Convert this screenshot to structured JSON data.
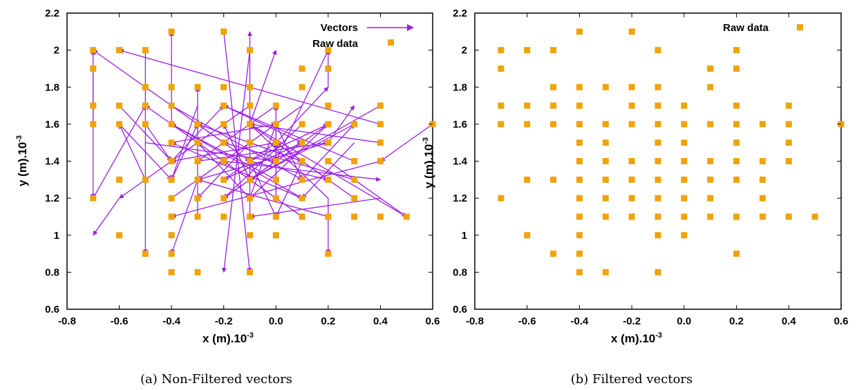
{
  "colors": {
    "points": "#f0a30a",
    "vectors": "#9b1de6",
    "axes": "#000000"
  },
  "chart_data": [
    {
      "type": "scatter",
      "panel": "a",
      "caption": "(a) Non-Filtered vectors",
      "xlabel": "x (m).10",
      "ylabel": "y (m).10",
      "exponent": "-3",
      "xlim": [
        -0.8,
        0.6
      ],
      "ylim": [
        0.6,
        2.2
      ],
      "xticks": [
        "-0.8",
        "-0.6",
        "-0.4",
        "-0.2",
        "0.0",
        "0.2",
        "0.4",
        "0.6"
      ],
      "yticks": [
        "0.6",
        "0.8",
        "1",
        "1.2",
        "1.4",
        "1.6",
        "1.8",
        "2",
        "2.2"
      ],
      "grid": false,
      "legend_position": "top-right",
      "legend": [
        {
          "label": "Vectors",
          "kind": "arrow"
        },
        {
          "label": "Raw data",
          "kind": "square"
        }
      ],
      "series": [
        {
          "name": "Raw data",
          "x": [
            -0.7,
            -0.6,
            -0.5,
            -0.2,
            -0.1,
            0.2,
            -0.4,
            0.2,
            -0.7,
            0.1,
            -0.1,
            -0.5,
            -0.4,
            -0.3,
            -0.2,
            0.1,
            -0.7,
            -0.6,
            -0.5,
            -0.4,
            -0.2,
            -0.1,
            0.0,
            0.2,
            0.4,
            -0.7,
            -0.6,
            -0.5,
            -0.4,
            -0.3,
            -0.2,
            -0.1,
            0.0,
            0.1,
            0.2,
            0.3,
            0.4,
            -0.4,
            -0.3,
            -0.2,
            -0.1,
            0.0,
            0.1,
            0.2,
            0.4,
            -0.4,
            -0.3,
            -0.2,
            -0.1,
            0.0,
            0.1,
            0.2,
            0.3,
            0.4,
            -0.6,
            -0.5,
            -0.4,
            -0.3,
            -0.2,
            -0.1,
            0.0,
            0.1,
            0.2,
            0.3,
            -0.7,
            -0.4,
            -0.3,
            -0.2,
            -0.1,
            0.0,
            0.1,
            0.3,
            -0.4,
            -0.3,
            -0.2,
            -0.1,
            0.0,
            0.1,
            0.2,
            0.3,
            0.4,
            0.5,
            -0.6,
            -0.4,
            -0.1,
            0.0,
            -0.5,
            -0.4,
            0.2,
            -0.4,
            -0.3,
            -0.1,
            -0.4,
            -0.2,
            -0.1,
            -0.1,
            -0.2,
            0.0,
            0.0,
            0.2,
            0.6
          ],
          "y": [
            2.0,
            2.0,
            2.0,
            2.1,
            2.0,
            2.0,
            2.1,
            1.9,
            1.9,
            1.9,
            1.8,
            1.8,
            1.8,
            1.8,
            1.8,
            1.8,
            1.7,
            1.7,
            1.7,
            1.7,
            1.7,
            1.7,
            1.7,
            1.7,
            1.7,
            1.6,
            1.6,
            1.6,
            1.6,
            1.6,
            1.6,
            1.6,
            1.6,
            1.6,
            1.6,
            1.6,
            1.6,
            1.5,
            1.5,
            1.5,
            1.5,
            1.5,
            1.5,
            1.5,
            1.5,
            1.4,
            1.4,
            1.4,
            1.4,
            1.4,
            1.4,
            1.4,
            1.4,
            1.4,
            1.3,
            1.3,
            1.3,
            1.3,
            1.3,
            1.3,
            1.3,
            1.3,
            1.3,
            1.3,
            1.2,
            1.2,
            1.2,
            1.2,
            1.2,
            1.2,
            1.2,
            1.2,
            1.1,
            1.1,
            1.1,
            1.1,
            1.1,
            1.1,
            1.1,
            1.1,
            1.1,
            1.1,
            1.0,
            1.0,
            1.0,
            1.0,
            0.9,
            0.9,
            0.9,
            0.8,
            0.8,
            0.8,
            1.4,
            1.4,
            1.5,
            1.6,
            1.5,
            1.5,
            1.4,
            1.5,
            1.6
          ]
        },
        {
          "name": "Vectors",
          "x0": [
            -0.7,
            -0.7,
            -0.5,
            -0.2,
            -0.1,
            0.2,
            -0.4,
            -0.6,
            0.4,
            0.6,
            -0.7,
            -0.1,
            0.5,
            0.2,
            -0.4,
            0.2,
            0.4,
            -0.1,
            -0.3,
            0.1,
            -0.5,
            0.0,
            0.3,
            -0.2,
            0.1,
            -0.6,
            0.2,
            -0.3,
            -0.1,
            0.0,
            -0.4,
            0.3,
            -0.2,
            0.4,
            0.0,
            -0.1,
            0.2,
            -0.5,
            0.1,
            -0.3,
            -0.4,
            0.0,
            -0.2,
            0.1,
            0.3,
            -0.1,
            0.0,
            -0.2,
            0.2,
            -0.4,
            -0.1,
            0.0,
            0.1,
            -0.3,
            0.2,
            -0.2,
            0.0,
            -0.1,
            0.3,
            0.4,
            -0.6,
            0.2,
            -0.2,
            0.1,
            -0.4,
            0.0,
            0.3,
            -0.3,
            -0.1,
            0.2,
            -0.2,
            0.0,
            -0.5,
            0.4,
            0.1,
            -0.3,
            0.0,
            -0.1,
            0.2,
            -0.2,
            0.1,
            -0.4,
            0.0,
            -0.1
          ],
          "y0": [
            1.6,
            1.9,
            2.0,
            2.1,
            2.0,
            2.0,
            1.6,
            1.2,
            1.6,
            1.6,
            1.2,
            1.1,
            1.1,
            1.2,
            1.3,
            1.8,
            1.4,
            1.7,
            1.1,
            1.1,
            1.3,
            1.2,
            1.2,
            1.5,
            1.6,
            1.7,
            1.4,
            1.3,
            1.6,
            1.5,
            1.7,
            1.3,
            1.4,
            1.2,
            1.3,
            1.4,
            1.5,
            1.6,
            1.4,
            1.5,
            1.5,
            1.1,
            1.3,
            1.7,
            1.4,
            1.5,
            1.6,
            1.2,
            1.5,
            1.4,
            1.3,
            1.4,
            1.5,
            1.6,
            1.6,
            1.7,
            1.5,
            1.3,
            1.5,
            1.5,
            1.6,
            1.3,
            1.6,
            1.2,
            1.2,
            1.7,
            1.6,
            1.4,
            1.2,
            1.1,
            1.3,
            1.4,
            1.5,
            1.7,
            1.3,
            1.7,
            1.2,
            1.5,
            1.2,
            1.4,
            1.4,
            1.6,
            1.3,
            1.4
          ],
          "x1": [
            -0.7,
            -0.7,
            -0.5,
            -0.1,
            -0.2,
            0.0,
            -0.4,
            -0.7,
            -0.6,
            0.4,
            -0.5,
            -0.1,
            -0.1,
            0.2,
            -0.3,
            0.2,
            -0.4,
            -0.6,
            -0.3,
            -0.2,
            -0.6,
            0.0,
            0.0,
            -0.7,
            -0.2,
            -0.4,
            0.5,
            -0.4,
            0.0,
            0.2,
            0.1,
            -0.2,
            -0.5,
            -0.1,
            -0.4,
            0.2,
            0.3,
            -0.4,
            0.0,
            -0.1,
            0.0,
            -0.1,
            0.0,
            -0.3,
            -0.2,
            -0.3,
            0.1,
            0.1,
            -0.3,
            -0.2,
            0.2,
            0.0,
            -0.2,
            -0.1,
            -0.1,
            0.1,
            -0.4,
            -0.2,
            0.1,
            -0.1,
            -0.4,
            -0.1,
            -0.1,
            -0.4,
            -0.2,
            -0.3,
            -0.1,
            0.2,
            0.0,
            -0.3,
            0.1,
            -0.2,
            0.0,
            -0.1,
            0.3,
            -0.4,
            -0.3,
            0.1,
            -0.1,
            0.4,
            -0.3,
            0.1,
            0.0,
            0.2
          ],
          "y1": [
            2.0,
            1.2,
            0.9,
            0.8,
            0.8,
            1.4,
            2.1,
            1.0,
            2.0,
            1.4,
            1.7,
            2.1,
            1.6,
            0.9,
            1.6,
            2.0,
            1.1,
            1.2,
            1.8,
            1.4,
            1.6,
            1.6,
            1.5,
            2.0,
            1.2,
            1.4,
            1.1,
            0.9,
            2.0,
            1.8,
            1.3,
            1.5,
            1.7,
            1.1,
            1.6,
            1.3,
            1.7,
            1.4,
            1.1,
            1.2,
            1.6,
            1.4,
            1.5,
            1.3,
            1.7,
            1.2,
            1.3,
            1.5,
            1.3,
            1.7,
            1.6,
            1.7,
            1.3,
            1.4,
            1.2,
            1.5,
            1.4,
            1.6,
            1.2,
            1.6,
            1.3,
            1.6,
            1.3,
            1.5,
            1.4,
            1.4,
            1.3,
            1.5,
            1.6,
            1.3,
            1.5,
            1.2,
            1.4,
            1.3,
            1.6,
            1.3,
            1.5,
            1.4,
            1.6,
            1.3,
            1.6,
            1.2,
            1.5,
            1.6
          ]
        }
      ]
    },
    {
      "type": "scatter",
      "panel": "b",
      "caption": "(b) Filtered vectors",
      "xlabel": "x (m).10",
      "ylabel": "y (m).10",
      "exponent": "-3",
      "xlim": [
        -0.8,
        0.6
      ],
      "ylim": [
        0.6,
        2.2
      ],
      "xticks": [
        "-0.8",
        "-0.6",
        "-0.4",
        "-0.2",
        "0.0",
        "0.2",
        "0.4",
        "0.6"
      ],
      "yticks": [
        "0.6",
        "0.8",
        "1",
        "1.2",
        "1.4",
        "1.6",
        "1.8",
        "2",
        "2.2"
      ],
      "grid": false,
      "legend_position": "top-right",
      "legend": [
        {
          "label": "Raw data",
          "kind": "square"
        }
      ],
      "series": [
        {
          "name": "Raw data",
          "x": [
            -0.7,
            -0.6,
            -0.5,
            -0.1,
            0.2,
            -0.4,
            -0.2,
            -0.7,
            0.1,
            0.2,
            -0.5,
            -0.4,
            -0.3,
            -0.2,
            -0.1,
            0.1,
            -0.7,
            -0.6,
            -0.5,
            -0.4,
            -0.2,
            -0.1,
            0.0,
            0.2,
            0.4,
            -0.7,
            -0.6,
            -0.5,
            -0.4,
            -0.3,
            -0.2,
            -0.1,
            0.0,
            0.1,
            0.2,
            0.3,
            0.4,
            0.6,
            -0.4,
            -0.3,
            -0.1,
            0.0,
            0.2,
            0.4,
            -0.4,
            -0.3,
            -0.2,
            -0.1,
            0.0,
            0.1,
            0.2,
            0.3,
            0.4,
            -0.6,
            -0.5,
            -0.4,
            -0.3,
            -0.2,
            -0.1,
            0.0,
            0.1,
            0.2,
            0.3,
            -0.7,
            -0.4,
            -0.3,
            -0.2,
            -0.1,
            0.0,
            0.1,
            0.3,
            -0.4,
            -0.3,
            -0.2,
            -0.1,
            0.0,
            0.1,
            0.2,
            0.3,
            0.4,
            0.5,
            -0.6,
            -0.4,
            -0.1,
            0.0,
            -0.5,
            -0.4,
            0.2,
            -0.4,
            -0.3,
            -0.1
          ],
          "y": [
            2.0,
            2.0,
            2.0,
            2.0,
            2.0,
            2.1,
            2.1,
            1.9,
            1.9,
            1.9,
            1.8,
            1.8,
            1.8,
            1.8,
            1.8,
            1.8,
            1.7,
            1.7,
            1.7,
            1.7,
            1.7,
            1.7,
            1.7,
            1.7,
            1.7,
            1.6,
            1.6,
            1.6,
            1.6,
            1.6,
            1.6,
            1.6,
            1.6,
            1.6,
            1.6,
            1.6,
            1.6,
            1.6,
            1.5,
            1.5,
            1.5,
            1.5,
            1.5,
            1.5,
            1.4,
            1.4,
            1.4,
            1.4,
            1.4,
            1.4,
            1.4,
            1.4,
            1.4,
            1.3,
            1.3,
            1.3,
            1.3,
            1.3,
            1.3,
            1.3,
            1.3,
            1.3,
            1.3,
            1.2,
            1.2,
            1.2,
            1.2,
            1.2,
            1.2,
            1.2,
            1.2,
            1.1,
            1.1,
            1.1,
            1.1,
            1.1,
            1.1,
            1.1,
            1.1,
            1.1,
            1.1,
            1.0,
            1.0,
            1.0,
            1.0,
            0.9,
            0.9,
            0.9,
            0.8,
            0.8,
            0.8
          ]
        }
      ]
    }
  ]
}
